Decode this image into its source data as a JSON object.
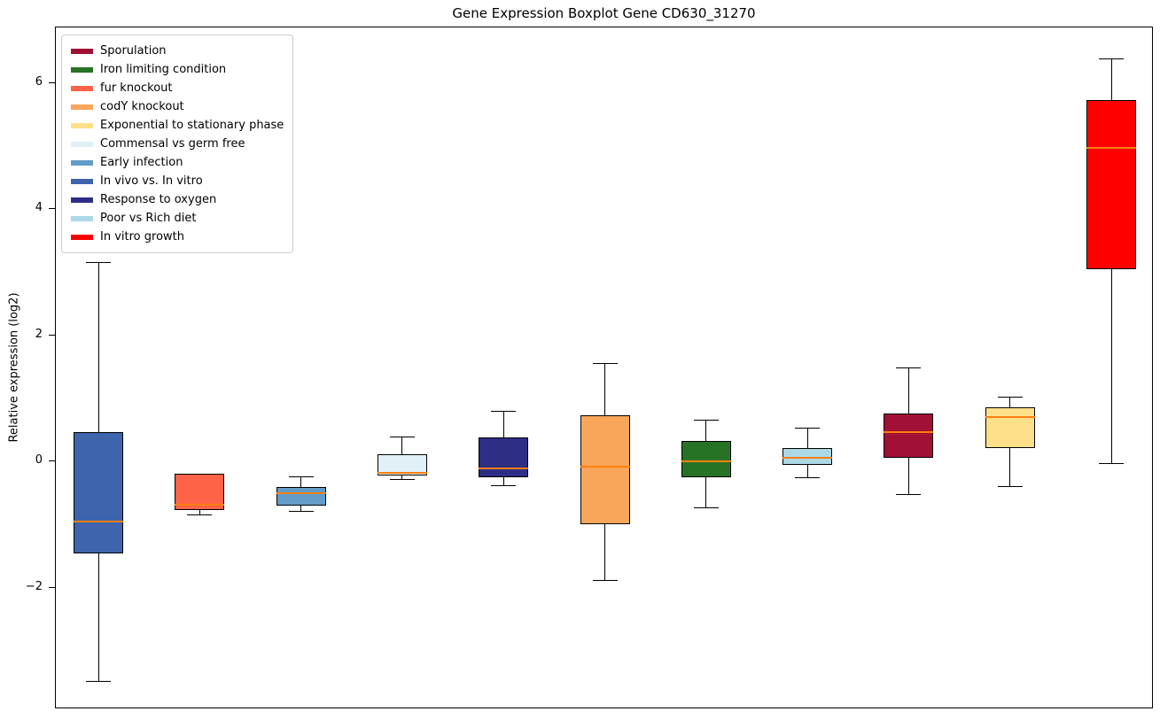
{
  "chart_data": {
    "type": "boxplot",
    "title": "Gene Expression Boxplot Gene CD630_31270",
    "ylabel": "Relative expression (log2)",
    "ylim": [
      -3.93,
      6.88
    ],
    "yticks": [
      -2,
      0,
      2,
      4,
      6
    ],
    "grid": false,
    "legend_position": "upper-left",
    "median_color": "#ff7f0e",
    "series": [
      {
        "name": "In vivo vs. In vitro",
        "color": "#3D64AD",
        "whisker_low": -3.48,
        "q1": -1.46,
        "median": -0.95,
        "q3": 0.46,
        "whisker_high": 3.16
      },
      {
        "name": "fur knockout",
        "color": "#FF6347",
        "whisker_low": -0.84,
        "q1": -0.77,
        "median": -0.68,
        "q3": -0.2,
        "whisker_high": -0.2
      },
      {
        "name": "Early infection",
        "color": "#639CC6",
        "whisker_low": -0.79,
        "q1": -0.7,
        "median": -0.5,
        "q3": -0.41,
        "whisker_high": -0.24
      },
      {
        "name": "Commensal vs germ free",
        "color": "#E1F0F7",
        "whisker_low": -0.28,
        "q1": -0.22,
        "median": -0.18,
        "q3": 0.11,
        "whisker_high": 0.39
      },
      {
        "name": "Response to oxygen",
        "color": "#2E2E85",
        "whisker_low": -0.38,
        "q1": -0.25,
        "median": -0.11,
        "q3": 0.38,
        "whisker_high": 0.8
      },
      {
        "name": "codY knockout",
        "color": "#F9A65A",
        "whisker_low": -1.88,
        "q1": -1.0,
        "median": -0.08,
        "q3": 0.73,
        "whisker_high": 1.56
      },
      {
        "name": "Iron limiting condition",
        "color": "#267326",
        "whisker_low": -0.73,
        "q1": -0.25,
        "median": 0.0,
        "q3": 0.32,
        "whisker_high": 0.66
      },
      {
        "name": "Poor vs Rich diet",
        "color": "#ADD8E6",
        "whisker_low": -0.25,
        "q1": -0.06,
        "median": 0.06,
        "q3": 0.21,
        "whisker_high": 0.53
      },
      {
        "name": "Sporulation",
        "color": "#A11035",
        "whisker_low": -0.52,
        "q1": 0.06,
        "median": 0.46,
        "q3": 0.76,
        "whisker_high": 1.49
      },
      {
        "name": "Exponential to stationary phase",
        "color": "#FFE08A",
        "whisker_low": -0.39,
        "q1": 0.21,
        "median": 0.7,
        "q3": 0.86,
        "whisker_high": 1.03
      },
      {
        "name": "In vitro growth",
        "color": "#FF0000",
        "whisker_low": -0.03,
        "q1": 3.05,
        "median": 4.97,
        "q3": 5.73,
        "whisker_high": 6.39
      }
    ],
    "legend": [
      {
        "label": "Sporulation",
        "color": "#A11035"
      },
      {
        "label": "Iron limiting condition",
        "color": "#267326"
      },
      {
        "label": "fur knockout",
        "color": "#FF6347"
      },
      {
        "label": "codY knockout",
        "color": "#F9A65A"
      },
      {
        "label": "Exponential to stationary phase",
        "color": "#FFE08A"
      },
      {
        "label": "Commensal vs germ free",
        "color": "#E1F0F7"
      },
      {
        "label": "Early infection",
        "color": "#639CC6"
      },
      {
        "label": "In vivo vs. In vitro",
        "color": "#3D64AD"
      },
      {
        "label": "Response to oxygen",
        "color": "#2E2E85"
      },
      {
        "label": "Poor vs Rich diet",
        "color": "#ADD8E6"
      },
      {
        "label": "In vitro growth",
        "color": "#FF0000"
      }
    ]
  }
}
